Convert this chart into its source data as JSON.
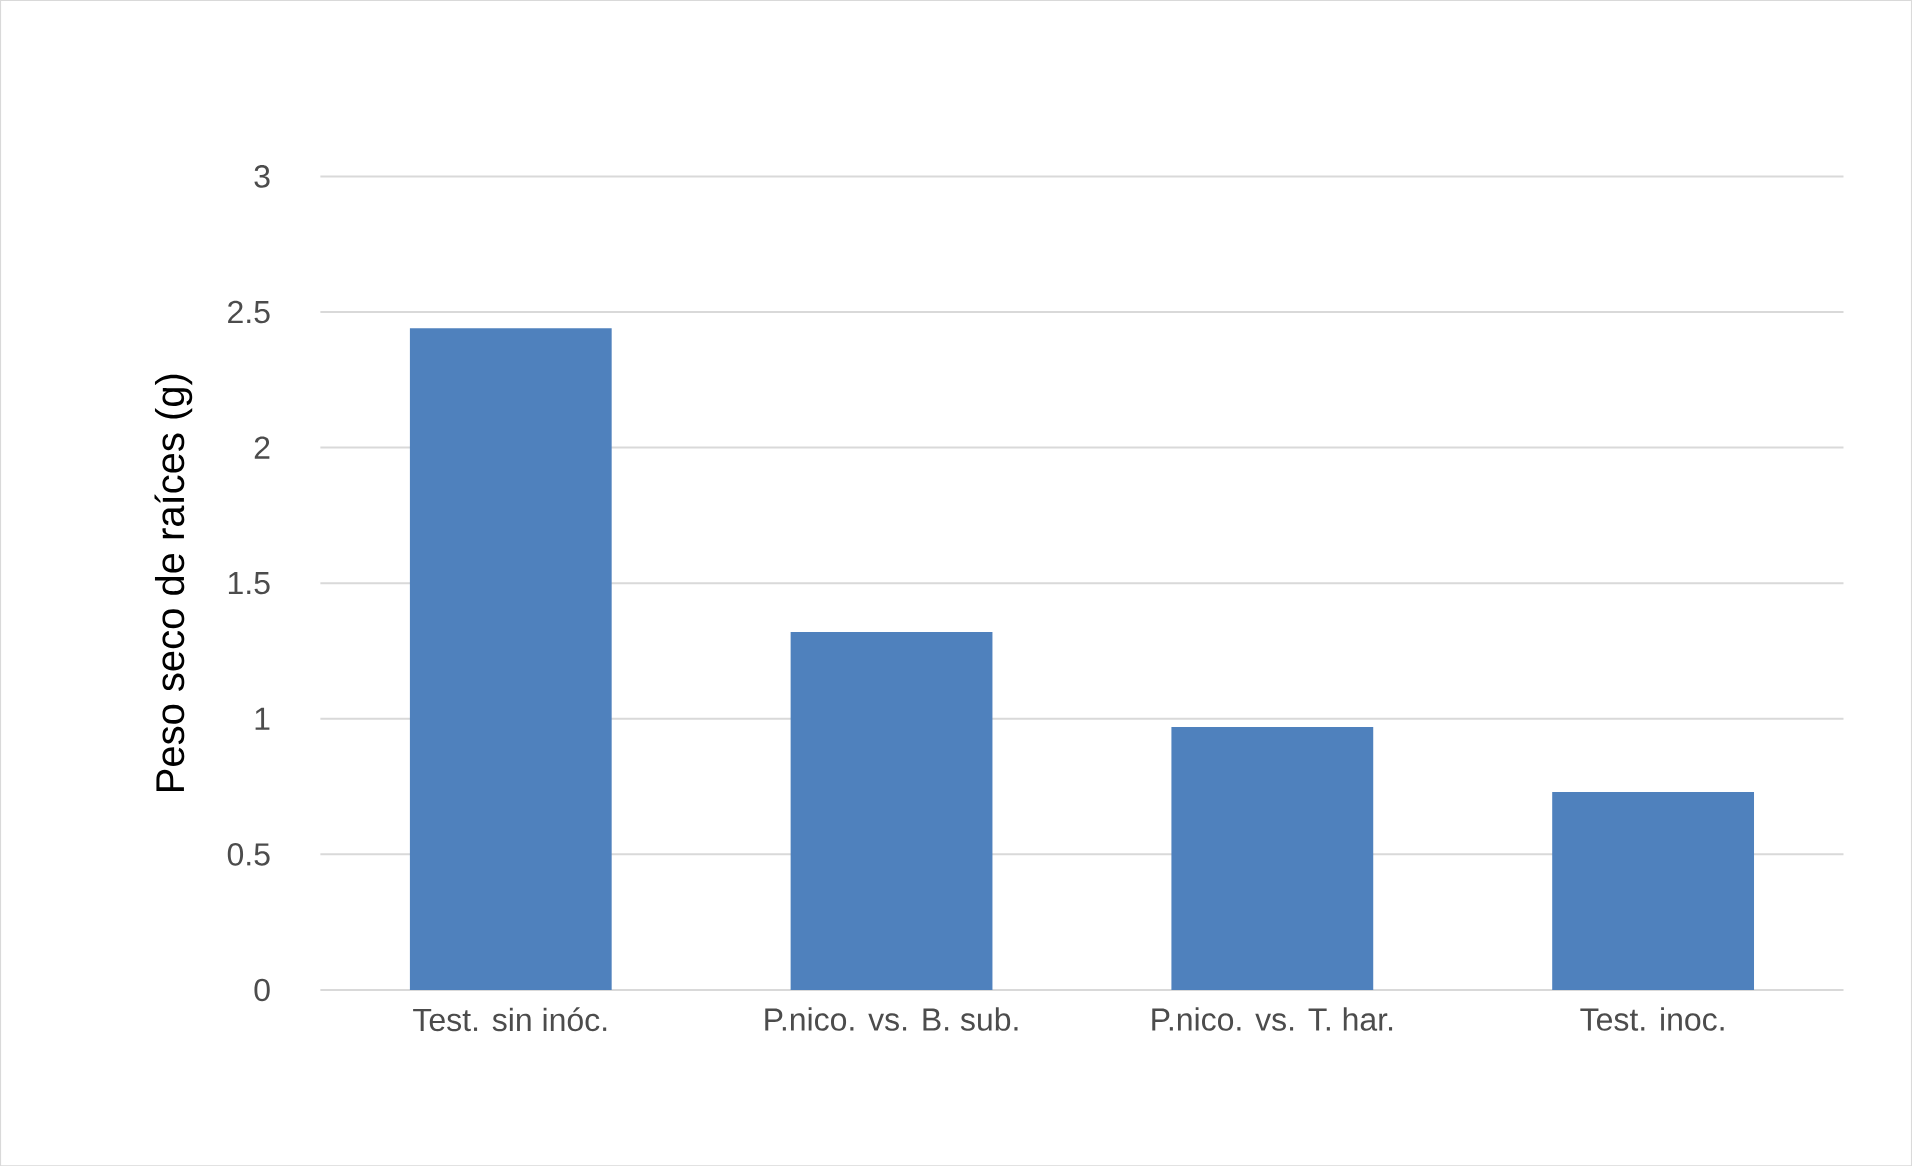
{
  "chart_data": {
    "type": "bar",
    "ylabel": "Peso seco de raíces (g)",
    "categories": [
      "Test. sin inóc.",
      "P.nico. vs. B. sub.",
      "P.nico. vs. T. har.",
      "Test. inoc."
    ],
    "values": [
      2.44,
      1.32,
      0.97,
      0.73
    ],
    "color": "#4f81bd",
    "ylim": [
      0,
      3
    ],
    "yticks": [
      0,
      0.5,
      1,
      1.5,
      2,
      2.5,
      3
    ],
    "grid": "y"
  }
}
